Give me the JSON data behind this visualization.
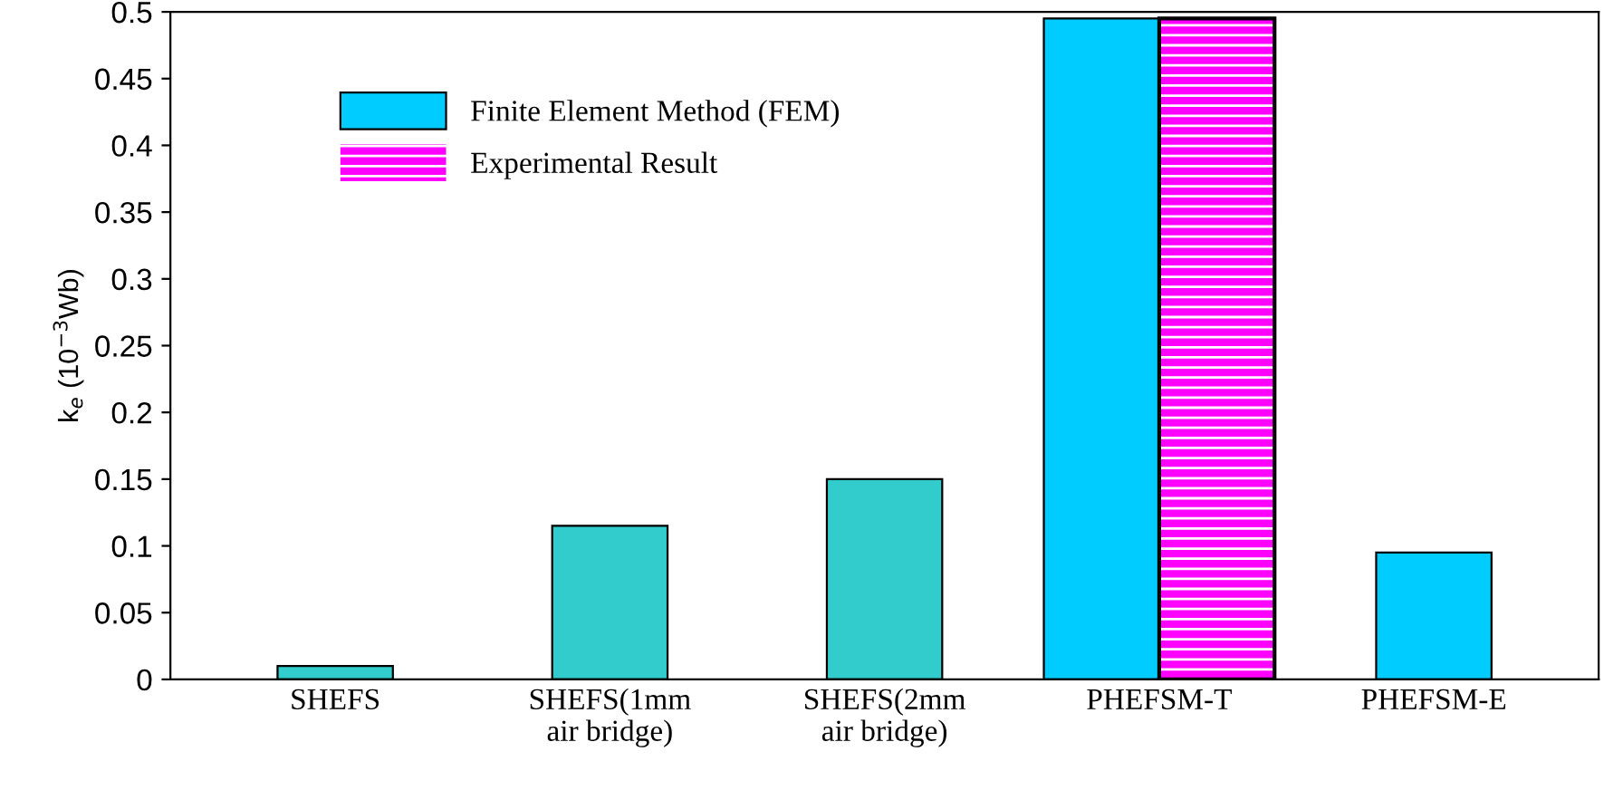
{
  "chart_data": {
    "type": "bar",
    "ylabel": "k$_{e}$ (10$^{−3}$Wb)",
    "categories": [
      "SHEFS",
      "SHEFS(1mm\nair bridge)",
      "SHEFS(2mm\nair bridge)",
      "PHEFSM-T",
      "PHEFSM-E"
    ],
    "series": [
      {
        "name": "Finite Element Method (FEM)",
        "color": "#00ccff",
        "colors": [
          "#33cccc",
          "#33cccc",
          "#33cccc",
          "#00ccff",
          "#00ccff"
        ],
        "values": [
          0.01,
          0.115,
          0.15,
          0.495,
          0.095
        ]
      },
      {
        "name": "Experimental Result",
        "color": "#ff00ff",
        "values": [
          null,
          null,
          null,
          0.495,
          null
        ]
      }
    ],
    "ylim": [
      0,
      0.5
    ],
    "yticks": [
      0,
      0.05,
      0.1,
      0.15,
      0.2,
      0.25,
      0.3,
      0.35,
      0.4,
      0.45,
      0.5
    ],
    "grid": false,
    "legend": "top left"
  }
}
